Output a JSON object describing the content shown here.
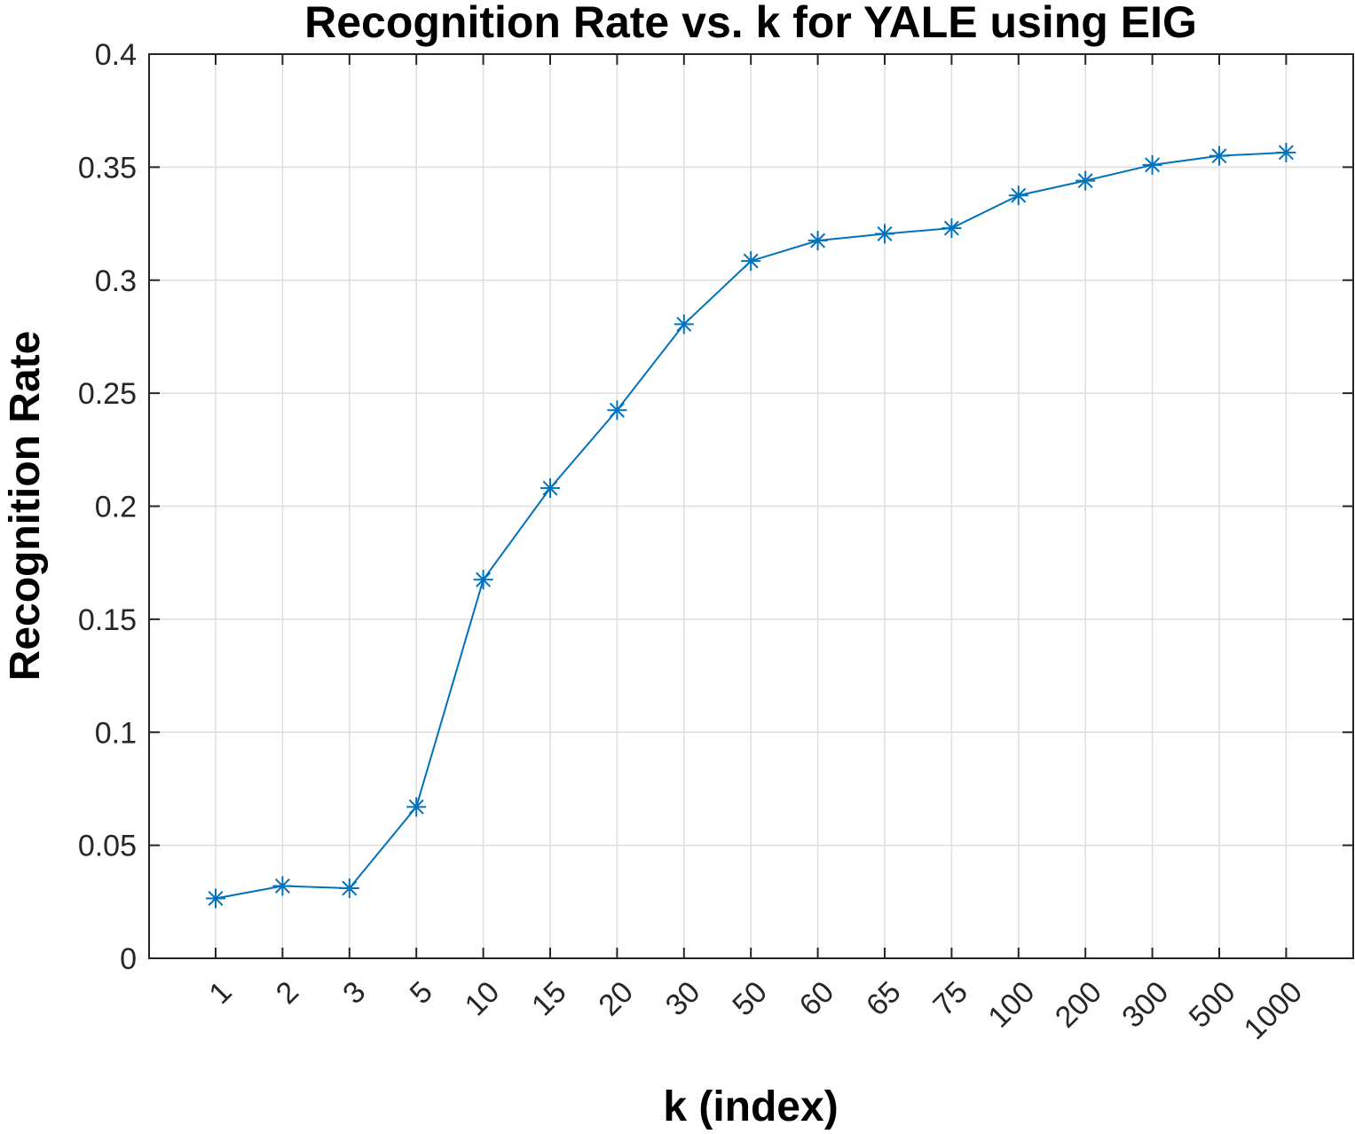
{
  "chart_data": {
    "type": "line",
    "title": "Recognition Rate vs. k for YALE using EIG",
    "xlabel": "k (index)",
    "ylabel": "Recognition Rate",
    "categories": [
      "1",
      "2",
      "3",
      "5",
      "10",
      "15",
      "20",
      "30",
      "50",
      "60",
      "65",
      "75",
      "100",
      "200",
      "300",
      "500",
      "1000"
    ],
    "series": [
      {
        "values": [
          0.0265,
          0.032,
          0.031,
          0.067,
          0.1675,
          0.208,
          0.2425,
          0.2805,
          0.3085,
          0.3175,
          0.3205,
          0.323,
          0.3375,
          0.344,
          0.351,
          0.355,
          0.3565
        ],
        "color": "#0072bd",
        "marker": "asterisk"
      }
    ],
    "ylim": [
      0,
      0.4
    ],
    "yticks": [
      "0",
      "0.05",
      "0.1",
      "0.15",
      "0.2",
      "0.25",
      "0.3",
      "0.35",
      "0.4"
    ],
    "grid": true,
    "x_tick_rotation": "45 degrees"
  }
}
